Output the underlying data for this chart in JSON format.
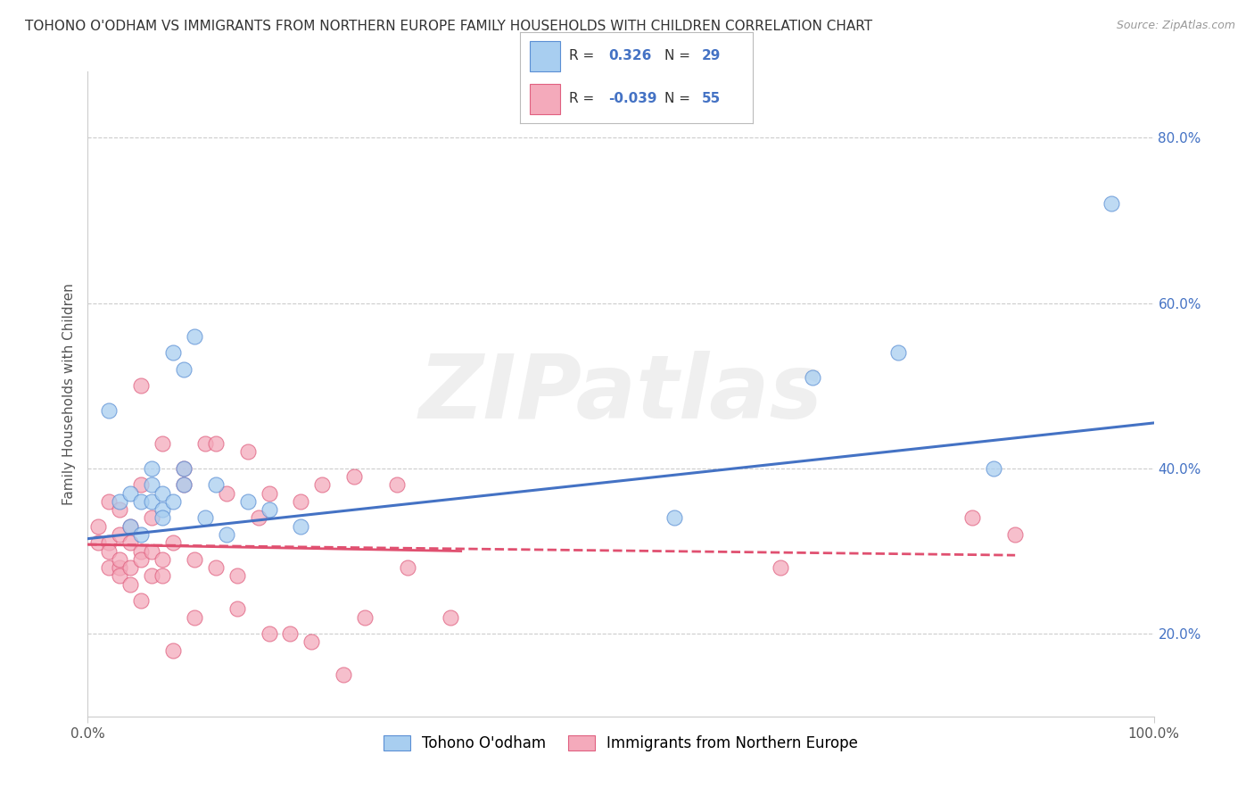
{
  "title": "TOHONO O'ODHAM VS IMMIGRANTS FROM NORTHERN EUROPE FAMILY HOUSEHOLDS WITH CHILDREN CORRELATION CHART",
  "source": "Source: ZipAtlas.com",
  "ylabel": "Family Households with Children",
  "xlim": [
    0.0,
    1.0
  ],
  "ylim": [
    0.1,
    0.88
  ],
  "yticks": [
    0.2,
    0.4,
    0.6,
    0.8
  ],
  "ytick_labels": [
    "20.0%",
    "40.0%",
    "60.0%",
    "80.0%"
  ],
  "xtick_positions": [
    0.0,
    1.0
  ],
  "xtick_labels": [
    "0.0%",
    "100.0%"
  ],
  "color_blue": "#A8CEF0",
  "color_pink": "#F4AABB",
  "edge_blue": "#5B8FD4",
  "edge_pink": "#E06080",
  "line_blue": "#4472C4",
  "line_pink": "#E05070",
  "watermark": "ZIPatlas",
  "blue_points": [
    [
      0.02,
      0.47
    ],
    [
      0.03,
      0.36
    ],
    [
      0.04,
      0.33
    ],
    [
      0.04,
      0.37
    ],
    [
      0.05,
      0.32
    ],
    [
      0.05,
      0.36
    ],
    [
      0.06,
      0.36
    ],
    [
      0.06,
      0.38
    ],
    [
      0.06,
      0.4
    ],
    [
      0.07,
      0.35
    ],
    [
      0.07,
      0.37
    ],
    [
      0.07,
      0.34
    ],
    [
      0.08,
      0.36
    ],
    [
      0.08,
      0.54
    ],
    [
      0.09,
      0.4
    ],
    [
      0.09,
      0.38
    ],
    [
      0.09,
      0.52
    ],
    [
      0.1,
      0.56
    ],
    [
      0.11,
      0.34
    ],
    [
      0.12,
      0.38
    ],
    [
      0.13,
      0.32
    ],
    [
      0.15,
      0.36
    ],
    [
      0.17,
      0.35
    ],
    [
      0.2,
      0.33
    ],
    [
      0.55,
      0.34
    ],
    [
      0.68,
      0.51
    ],
    [
      0.76,
      0.54
    ],
    [
      0.85,
      0.4
    ],
    [
      0.96,
      0.72
    ]
  ],
  "pink_points": [
    [
      0.01,
      0.31
    ],
    [
      0.01,
      0.33
    ],
    [
      0.02,
      0.36
    ],
    [
      0.02,
      0.31
    ],
    [
      0.02,
      0.28
    ],
    [
      0.02,
      0.3
    ],
    [
      0.03,
      0.35
    ],
    [
      0.03,
      0.28
    ],
    [
      0.03,
      0.32
    ],
    [
      0.03,
      0.29
    ],
    [
      0.03,
      0.27
    ],
    [
      0.04,
      0.31
    ],
    [
      0.04,
      0.33
    ],
    [
      0.04,
      0.26
    ],
    [
      0.04,
      0.28
    ],
    [
      0.05,
      0.3
    ],
    [
      0.05,
      0.24
    ],
    [
      0.05,
      0.38
    ],
    [
      0.05,
      0.29
    ],
    [
      0.05,
      0.5
    ],
    [
      0.06,
      0.3
    ],
    [
      0.06,
      0.27
    ],
    [
      0.06,
      0.34
    ],
    [
      0.07,
      0.29
    ],
    [
      0.07,
      0.27
    ],
    [
      0.07,
      0.43
    ],
    [
      0.08,
      0.31
    ],
    [
      0.08,
      0.18
    ],
    [
      0.09,
      0.4
    ],
    [
      0.09,
      0.38
    ],
    [
      0.1,
      0.29
    ],
    [
      0.1,
      0.22
    ],
    [
      0.11,
      0.43
    ],
    [
      0.12,
      0.28
    ],
    [
      0.12,
      0.43
    ],
    [
      0.13,
      0.37
    ],
    [
      0.14,
      0.27
    ],
    [
      0.14,
      0.23
    ],
    [
      0.15,
      0.42
    ],
    [
      0.16,
      0.34
    ],
    [
      0.17,
      0.37
    ],
    [
      0.17,
      0.2
    ],
    [
      0.19,
      0.2
    ],
    [
      0.2,
      0.36
    ],
    [
      0.21,
      0.19
    ],
    [
      0.22,
      0.38
    ],
    [
      0.24,
      0.15
    ],
    [
      0.25,
      0.39
    ],
    [
      0.26,
      0.22
    ],
    [
      0.29,
      0.38
    ],
    [
      0.3,
      0.28
    ],
    [
      0.34,
      0.22
    ],
    [
      0.65,
      0.28
    ],
    [
      0.83,
      0.34
    ],
    [
      0.87,
      0.32
    ]
  ],
  "blue_line": {
    "x0": 0.0,
    "y0": 0.315,
    "x1": 1.0,
    "y1": 0.455
  },
  "pink_line_solid": {
    "x0": 0.0,
    "y0": 0.308,
    "x1": 0.35,
    "y1": 0.3
  },
  "pink_line_dash": {
    "x0": 0.0,
    "y0": 0.308,
    "x1": 0.87,
    "y1": 0.295
  },
  "legend_r1_prefix": "R = ",
  "legend_r1_val": " 0.326",
  "legend_r1_n": "  N = 29",
  "legend_r2_prefix": "R = ",
  "legend_r2_val": "-0.039",
  "legend_r2_n": "  N = 55",
  "grid_color": "#CCCCCC",
  "title_fontsize": 11,
  "source_fontsize": 9,
  "tick_fontsize": 11,
  "ylabel_fontsize": 11,
  "legend_fontsize": 12
}
